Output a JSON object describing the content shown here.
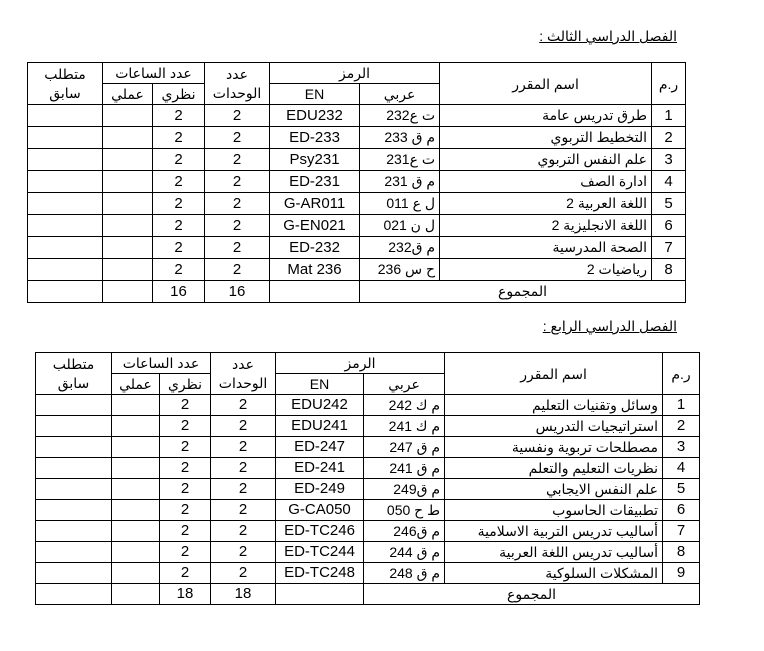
{
  "headers": {
    "rm": "ر.م",
    "name": "اسم المقرر",
    "code": "الرمز",
    "code_ar": "عربي",
    "code_en": "EN",
    "units": "عدد الوحدات",
    "hours": "عدد الساعات",
    "theory": "نظري",
    "practical": "عملي",
    "prereq": "متطلب سابق",
    "total": "المجموع"
  },
  "semesters": [
    {
      "title": "الفصل الدراسي الثالث :",
      "rows": [
        {
          "n": "1",
          "name": "طرق تدريس عامة",
          "ar": "ت ع232",
          "en": "EDU232",
          "units": "2",
          "theory": "2",
          "practical": "",
          "prereq": ""
        },
        {
          "n": "2",
          "name": "التخطيط التربوي",
          "ar": "م ق 233",
          "en": "ED-233",
          "units": "2",
          "theory": "2",
          "practical": "",
          "prereq": ""
        },
        {
          "n": "3",
          "name": "علم النفس التربوي",
          "ar": "ت ع231",
          "en": "Psy231",
          "units": "2",
          "theory": "2",
          "practical": "",
          "prereq": ""
        },
        {
          "n": "4",
          "name": "ادارة الصف",
          "ar": "م ق 231",
          "en": "ED-231",
          "units": "2",
          "theory": "2",
          "practical": "",
          "prereq": ""
        },
        {
          "n": "5",
          "name": "اللغة العربية 2",
          "ar": "ل ع 011",
          "en": "G-AR011",
          "units": "2",
          "theory": "2",
          "practical": "",
          "prereq": ""
        },
        {
          "n": "6",
          "name": "اللغة الانجليزية 2",
          "ar": "ل ن 021",
          "en": "G-EN021",
          "units": "2",
          "theory": "2",
          "practical": "",
          "prereq": ""
        },
        {
          "n": "7",
          "name": "الصحة المدرسية",
          "ar": "م ق232",
          "en": "ED-232",
          "units": "2",
          "theory": "2",
          "practical": "",
          "prereq": ""
        },
        {
          "n": "8",
          "name": "رياضيات 2",
          "ar": "ح س 236",
          "en": "Mat 236",
          "units": "2",
          "theory": "2",
          "practical": "",
          "prereq": ""
        }
      ],
      "total_units": "16",
      "total_theory": "16"
    },
    {
      "title": "الفصل الدراسي الرابع :",
      "rows": [
        {
          "n": "1",
          "name": "وسائل وتقنيات التعليم",
          "ar": "م ك 242",
          "en": "EDU242",
          "units": "2",
          "theory": "2",
          "practical": "",
          "prereq": ""
        },
        {
          "n": "2",
          "name": "استراتيجيات التدريس",
          "ar": "م ك 241",
          "en": "EDU241",
          "units": "2",
          "theory": "2",
          "practical": "",
          "prereq": ""
        },
        {
          "n": "3",
          "name": "مصطلحات تربوية ونفسية",
          "ar": "م ق 247",
          "en": "ED-247",
          "units": "2",
          "theory": "2",
          "practical": "",
          "prereq": ""
        },
        {
          "n": "4",
          "name": "نظريات التعليم والتعلم",
          "ar": "م ق 241",
          "en": "ED-241",
          "units": "2",
          "theory": "2",
          "practical": "",
          "prereq": ""
        },
        {
          "n": "5",
          "name": "علم النفس الايجابي",
          "ar": "م ق249",
          "en": "ED-249",
          "units": "2",
          "theory": "2",
          "practical": "",
          "prereq": ""
        },
        {
          "n": "6",
          "name": "تطبيقات الحاسوب",
          "ar": "ط ح 050",
          "en": "G-CA050",
          "units": "2",
          "theory": "2",
          "practical": "",
          "prereq": ""
        },
        {
          "n": "7",
          "name": "أساليب تدريس التربية الاسلامية",
          "ar": "م ق246",
          "en": "ED-TC246",
          "units": "2",
          "theory": "2",
          "practical": "",
          "prereq": ""
        },
        {
          "n": "8",
          "name": "أساليب تدريس اللغة العربية",
          "ar": "م ق 244",
          "en": "ED-TC244",
          "units": "2",
          "theory": "2",
          "practical": "",
          "prereq": ""
        },
        {
          "n": "9",
          "name": "المشكلات السلوكية",
          "ar": "م ق 248",
          "en": "ED-TC248",
          "units": "2",
          "theory": "2",
          "practical": "",
          "prereq": ""
        }
      ],
      "total_units": "18",
      "total_theory": "18"
    }
  ]
}
